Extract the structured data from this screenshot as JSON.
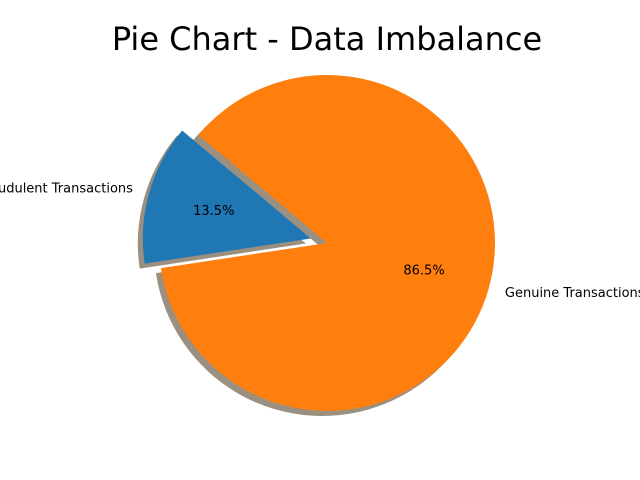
{
  "chart_data": {
    "type": "pie",
    "title": "Pie Chart - Data Imbalance",
    "slices": [
      {
        "label": "Fraudulent Transactions",
        "value": 13.5,
        "pct_label": "13.5%",
        "color": "#1f77b4",
        "exploded": true
      },
      {
        "label": "Genuine Transactions",
        "value": 86.5,
        "pct_label": "86.5%",
        "color": "#ff7f0e",
        "exploded": false
      }
    ],
    "shadow": true
  }
}
